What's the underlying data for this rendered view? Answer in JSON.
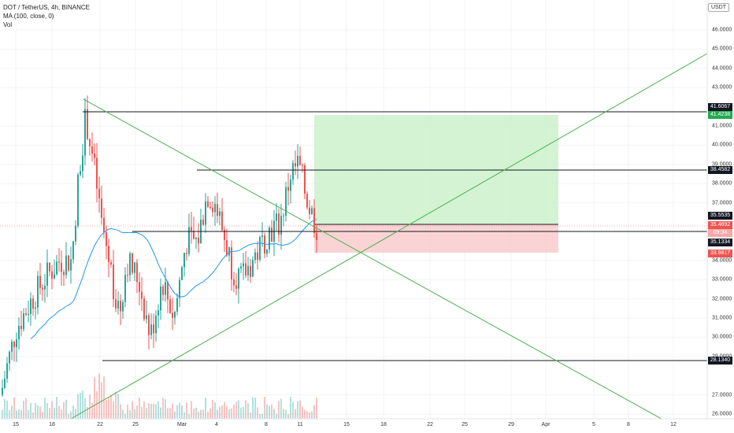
{
  "legend": {
    "symbol_line": "DOT / TetherUS, 4h, BINANCE",
    "ma_line": "MA (100, close, 0)",
    "vol_line": "Vol"
  },
  "unit_button": "USDT",
  "price_axis": {
    "ticks": [
      "46.0000",
      "45.0000",
      "44.0000",
      "43.0000",
      "41.0000",
      "40.0000",
      "39.0000",
      "38.0000",
      "37.0000",
      "34.0000",
      "33.0000",
      "32.0000",
      "31.0000",
      "30.0000",
      "29.0000",
      "27.0000",
      "26.0000"
    ],
    "tick_values": [
      46,
      45,
      44,
      43,
      41,
      40,
      39,
      38,
      37,
      34,
      33,
      32,
      31,
      30,
      29,
      27,
      26
    ]
  },
  "time_axis": {
    "ticks": [
      "15",
      "18",
      "22",
      "25",
      "Mar",
      "4",
      "8",
      "11",
      "15",
      "18",
      "22",
      "25",
      "29",
      "Apr",
      "5",
      "8",
      "12"
    ]
  },
  "price_labels": {
    "top_line": "41.6067",
    "target": "41.4238",
    "resistance": "38.4582",
    "entry": "35.5535",
    "current": "35.4692",
    "countdown": "09:34",
    "support": "35.1334",
    "stop": "33.9817",
    "bottom_line": "28.1340"
  },
  "colors": {
    "up": "#26a69a",
    "down": "#ef5350",
    "ma": "#2196f3",
    "trend": "#4caf50",
    "profit_zone": "#c8f0c8",
    "loss_zone": "#f9c9c9"
  }
}
